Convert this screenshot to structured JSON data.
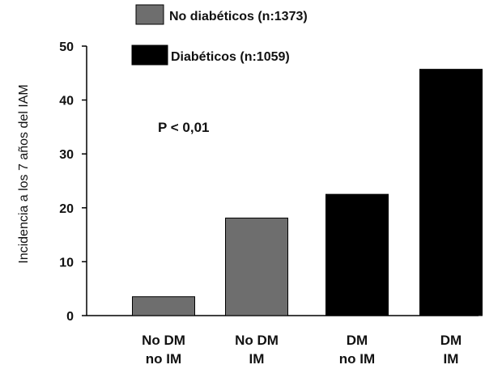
{
  "chart_data": {
    "type": "bar",
    "ylabel": "Incidencia a los 7 años del IAM",
    "ylim": [
      0,
      50
    ],
    "yticks": [
      0,
      10,
      20,
      30,
      40,
      50
    ],
    "categories": [
      [
        "No DM",
        "no IM"
      ],
      [
        "No DM",
        "IM"
      ],
      [
        "DM",
        "no IM"
      ],
      [
        "DM",
        "IM"
      ]
    ],
    "values": [
      3.5,
      18.1,
      22.5,
      45.7
    ],
    "bar_groups": [
      0,
      0,
      1,
      1
    ],
    "series": [
      {
        "name": "No diabéticos (n:1373)",
        "color": "#6e6e6e"
      },
      {
        "name": "Diabéticos (n:1059)",
        "color": "#000000"
      }
    ],
    "annotations": [
      "P < 0,01"
    ],
    "grid": false,
    "legend_position": "top"
  }
}
